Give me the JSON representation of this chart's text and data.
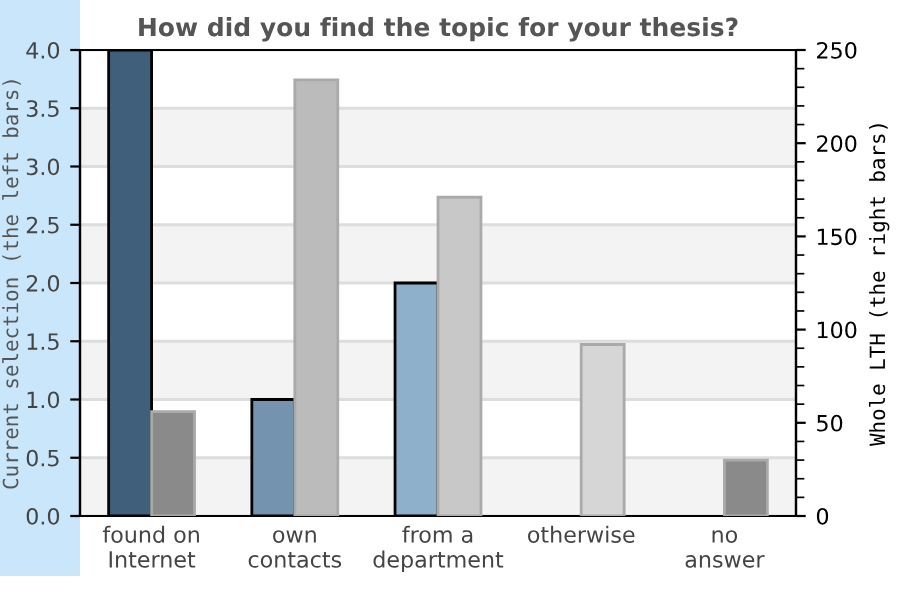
{
  "chart_data": {
    "type": "bar",
    "title": "How did you find the topic for your thesis?",
    "categories": [
      "found on\nInternet",
      "own\ncontacts",
      "from a\ndepartment",
      "otherwise",
      "no\nanswer"
    ],
    "ylabel": "Current selection (the left bars)",
    "y2label": "Whole LTH (the right bars)",
    "series": [
      {
        "colors": [
          "#3f5f7a",
          "#7393ae",
          "#8fb0cb",
          "#a8c4dc",
          "#bcd2e6"
        ],
        "values": [
          4,
          1,
          2,
          0,
          0
        ]
      },
      {
        "axis": "y2",
        "colors": [
          "#8a8a8a",
          "#bbbbbb",
          "#c8c8c8",
          "#d6d6d6",
          "#8a8a8a"
        ],
        "values": [
          56,
          234,
          171,
          92,
          30
        ]
      }
    ],
    "ylim": [
      0,
      4
    ],
    "yticks": [
      {
        "value": 0,
        "label": "0.0"
      },
      {
        "value": 0.5,
        "label": "0.5"
      },
      {
        "value": 1,
        "label": "1.0"
      },
      {
        "value": 1.5,
        "label": "1.5"
      },
      {
        "value": 2,
        "label": "2.0"
      },
      {
        "value": 2.5,
        "label": "2.5"
      },
      {
        "value": 3,
        "label": "3.0"
      },
      {
        "value": 3.5,
        "label": "3.5"
      },
      {
        "value": 4,
        "label": "4.0"
      }
    ],
    "y2lim": [
      0,
      250
    ],
    "y2ticks": [
      0,
      50,
      100,
      150,
      200,
      250
    ],
    "grid": "y",
    "legend": false
  }
}
